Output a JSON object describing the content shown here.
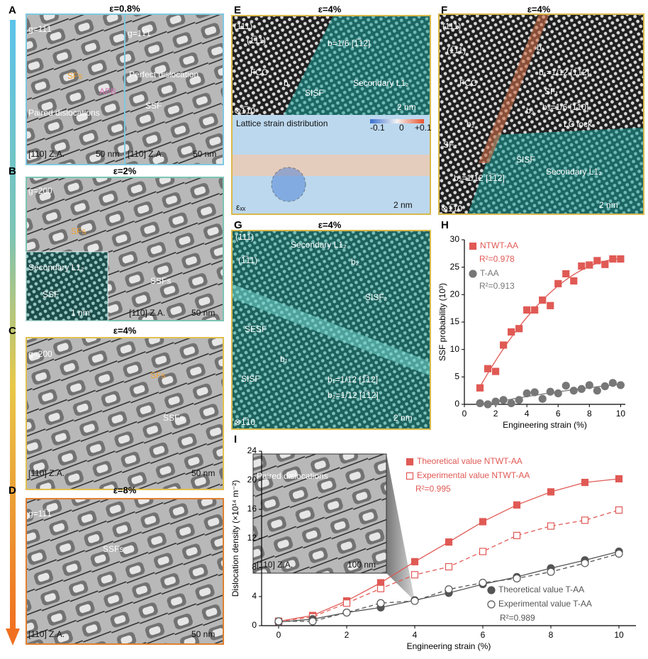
{
  "panels": [
    {
      "label": "A",
      "strain": "ε=0.8%",
      "texts": [
        "g=11̅1",
        "SFs",
        "APB",
        "Paired dislocations",
        "[110] Z.A.",
        "50 nm",
        "g=11̅1",
        "Perfect dislocation",
        "SSF",
        "[110] Z.A.",
        "50 nm"
      ]
    },
    {
      "label": "B",
      "strain": "ε=2%",
      "texts": [
        "g=200",
        "SFs",
        "SSFs",
        "Secondary L1₂",
        "SSF",
        "1 nm",
        "[110] Z.A.",
        "50 nm"
      ]
    },
    {
      "label": "C",
      "strain": "ε=4%",
      "texts": [
        "g=200",
        "SFs",
        "SSFs",
        "[110] Z.A.",
        "50 nm"
      ]
    },
    {
      "label": "D",
      "strain": "ε=8%",
      "texts": [
        "g=11̅1",
        "SSFs",
        "[110] Z.A.",
        "50 nm"
      ]
    },
    {
      "label": "E",
      "strain": "ε=4%",
      "texts": [
        "(111)",
        "(1̅11)",
        "b=1/6 [1̅12]",
        "FCC",
        "b",
        "SISF",
        "Secondary L1₂",
        "2 nm",
        "⊗1̅10",
        "Lattice strain distribution",
        "-0.1",
        "0",
        "+0.1",
        "εₓₓ",
        "2 nm"
      ]
    },
    {
      "label": "F",
      "strain": "ε=4%",
      "texts": [
        "(111)",
        "(1̅11)",
        "b₁",
        "b₁=1/12 [1̅12]",
        "FCC",
        "SF₁",
        "b₃",
        "b₃=1/6 [1̅10]",
        "LC lock",
        "b₂",
        "SF₂",
        "SISF",
        "Secondary L1₂",
        "b₂=1/12 [1̅12]",
        "⊗1̅10",
        "2 nm"
      ]
    },
    {
      "label": "G",
      "strain": "ε=4%",
      "texts": [
        "(111)",
        "(1̅11)",
        "Secondary L1₂",
        "b₂",
        "SISF₂",
        "SESF",
        "b₁",
        "SISF",
        "b₁=1/12 [1̅12]",
        "b₂=1/12 [1̅12]",
        "⊗1̅10",
        "2 nm"
      ]
    }
  ],
  "chart_data": [
    {
      "type": "scatter",
      "label": "H",
      "x_label": "Engineering strain (%)",
      "y_label": "SSF probability (10³)",
      "xlim": [
        0,
        10.3
      ],
      "xticks": [
        0,
        2,
        4,
        6,
        8,
        10
      ],
      "ylim": [
        0,
        30
      ],
      "yticks": [
        0,
        5,
        10,
        15,
        20,
        25,
        30
      ],
      "x": [
        1,
        1.5,
        2,
        2.5,
        3,
        3.5,
        4,
        4.5,
        5,
        5.5,
        6,
        6.5,
        7,
        7.5,
        8,
        8.5,
        9,
        9.5,
        10
      ],
      "series": [
        {
          "name": "NTWT-AA",
          "color": "#e05a55",
          "marker": "square",
          "filled": true,
          "line": "fit",
          "values": [
            3,
            6.5,
            6,
            10.8,
            13.2,
            13.8,
            17.2,
            17.2,
            19,
            18,
            22,
            23.8,
            22.5,
            25.2,
            25.4,
            26.2,
            25.5,
            26.5,
            26.5
          ]
        },
        {
          "name": "T-AA",
          "color": "#777777",
          "marker": "circle",
          "filled": true,
          "line": "fit",
          "values": [
            0.2,
            0,
            0.5,
            0.8,
            0.2,
            0.8,
            2,
            2.2,
            1,
            2.3,
            2,
            3.4,
            2.5,
            2.8,
            3.5,
            2.5,
            3.3,
            3.9,
            3.5
          ]
        }
      ],
      "annotations": [
        "R²=0.978",
        "R²=0.913"
      ]
    },
    {
      "type": "line",
      "label": "I",
      "x_label": "Engineering strain (%)",
      "y_label": "Dislocation density (×10¹⁴ m⁻²)",
      "xlim": [
        -0.5,
        10.5
      ],
      "xticks": [
        0,
        2,
        4,
        6,
        8,
        10
      ],
      "ylim": [
        0,
        24
      ],
      "yticks": [
        0,
        4,
        8,
        12,
        16,
        20,
        24
      ],
      "x": [
        0,
        1,
        2,
        3,
        4,
        5,
        6,
        7,
        8,
        9,
        10
      ],
      "series": [
        {
          "name": "Theoretical value NTWT-AA",
          "color": "#e05a55",
          "marker": "square",
          "filled": true,
          "line": "solid",
          "values": [
            0.6,
            1.4,
            3.4,
            5.9,
            8.8,
            11.5,
            14.3,
            16.6,
            18.4,
            19.7,
            20.2
          ]
        },
        {
          "name": "Experimental value NTWT-AA",
          "color": "#e05a55",
          "marker": "square",
          "filled": false,
          "line": "dashed",
          "values": [
            0.6,
            1.2,
            3.1,
            5.1,
            7.0,
            8.1,
            10.2,
            12.4,
            13.7,
            14.5,
            15.9
          ]
        },
        {
          "name": "Theoretical value T-AA",
          "color": "#555555",
          "marker": "circle",
          "filled": true,
          "line": "solid",
          "values": [
            0.5,
            0.9,
            1.8,
            2.5,
            3.5,
            4.5,
            5.7,
            6.7,
            7.9,
            9.0,
            10.2
          ]
        },
        {
          "name": "Experimental value T-AA",
          "color": "#555555",
          "marker": "circle",
          "filled": false,
          "line": "dashed",
          "values": [
            0.6,
            0.6,
            1.8,
            3.1,
            3.4,
            5.0,
            5.9,
            6.5,
            7.4,
            8.6,
            9.9
          ]
        }
      ],
      "annotations": [
        "R²=0.995",
        "R²=0.989"
      ],
      "inset_texts": [
        "Paired dislocations",
        "[110] Z.A.",
        "100 nm"
      ]
    }
  ]
}
